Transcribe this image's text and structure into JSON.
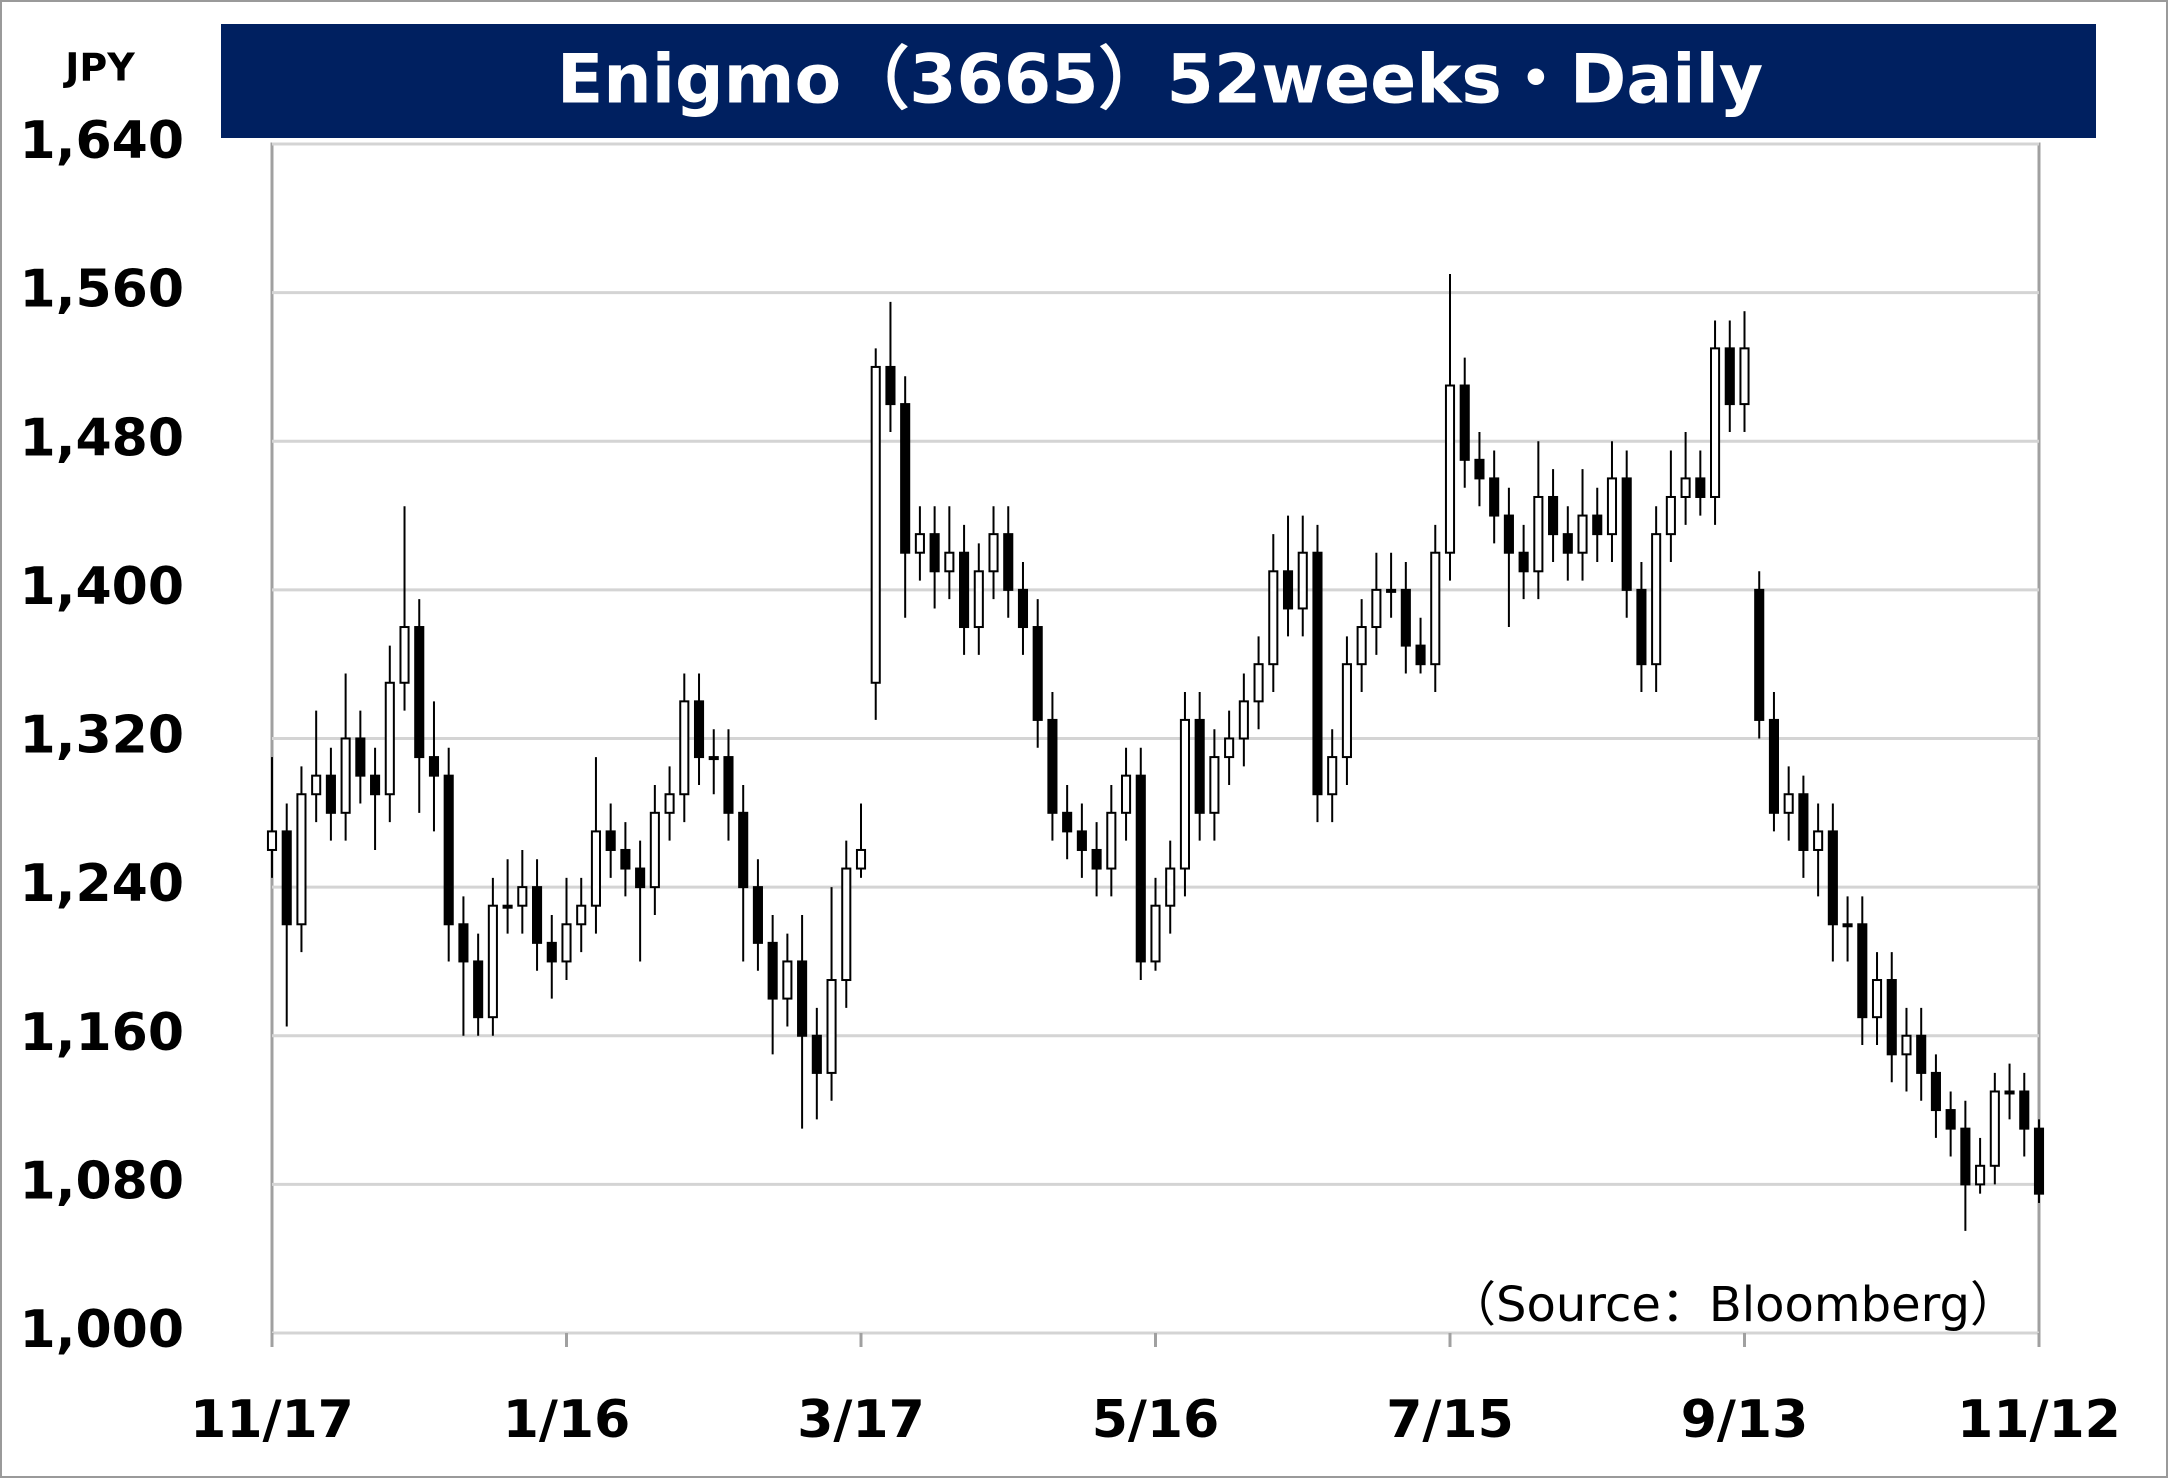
{
  "chart_data": {
    "type": "candlestick",
    "title": "Enigmo（3665）52weeks・Daily",
    "y_label": "JPY",
    "source": "（Source：Bloomberg）",
    "categories": [
      "11/17",
      null,
      null,
      null,
      null,
      null,
      null,
      null,
      null,
      null,
      null,
      null,
      null,
      null,
      null,
      null,
      null,
      null,
      null,
      null,
      "1/16",
      null,
      null,
      null,
      null,
      null,
      null,
      null,
      null,
      null,
      null,
      null,
      null,
      null,
      null,
      null,
      null,
      null,
      null,
      null,
      "3/17",
      null,
      null,
      null,
      null,
      null,
      null,
      null,
      null,
      null,
      null,
      null,
      null,
      null,
      null,
      null,
      null,
      null,
      null,
      null,
      "5/16",
      null,
      null,
      null,
      null,
      null,
      null,
      null,
      null,
      null,
      null,
      null,
      null,
      null,
      null,
      null,
      null,
      null,
      null,
      null,
      "7/15",
      null,
      null,
      null,
      null,
      null,
      null,
      null,
      null,
      null,
      null,
      null,
      null,
      null,
      null,
      null,
      null,
      null,
      null,
      null,
      "9/13",
      null,
      null,
      null,
      null,
      null,
      null,
      null,
      null,
      null,
      null,
      null,
      null,
      null,
      null,
      null,
      null,
      null,
      null,
      null,
      "11/12"
    ],
    "open": [
      1260,
      1270,
      1220,
      1290,
      1300,
      1280,
      1320,
      1300,
      1290,
      1350,
      1380,
      1310,
      1300,
      1220,
      1200,
      1170,
      1230,
      1230,
      1240,
      1210,
      1200,
      1220,
      1230,
      1270,
      1260,
      1250,
      1240,
      1280,
      1290,
      1340,
      1310,
      1310,
      1280,
      1240,
      1210,
      1180,
      1200,
      1160,
      1140,
      1190,
      1250,
      1350,
      1520,
      1500,
      1420,
      1430,
      1410,
      1420,
      1380,
      1410,
      1430,
      1400,
      1380,
      1330,
      1280,
      1270,
      1260,
      1250,
      1280,
      1300,
      1200,
      1230,
      1250,
      1330,
      1280,
      1310,
      1320,
      1340,
      1360,
      1410,
      1390,
      1420,
      1290,
      1310,
      1360,
      1380,
      1400,
      1400,
      1370,
      1360,
      1420,
      1510,
      1470,
      1460,
      1440,
      1420,
      1410,
      1450,
      1430,
      1420,
      1440,
      1430,
      1460,
      1400,
      1360,
      1430,
      1450,
      1460,
      1450,
      1530,
      1500,
      1400,
      1330,
      1280,
      1290,
      1260,
      1270,
      1220,
      1220,
      1170,
      1190,
      1150,
      1160,
      1140,
      1120,
      1110,
      1080,
      1090,
      1130,
      1130,
      1110
    ],
    "high": [
      1310,
      1285,
      1305,
      1335,
      1315,
      1355,
      1335,
      1315,
      1370,
      1445,
      1395,
      1340,
      1315,
      1235,
      1215,
      1245,
      1255,
      1260,
      1255,
      1225,
      1245,
      1245,
      1310,
      1285,
      1275,
      1265,
      1295,
      1305,
      1355,
      1355,
      1325,
      1325,
      1295,
      1255,
      1225,
      1215,
      1225,
      1175,
      1240,
      1265,
      1285,
      1530,
      1555,
      1515,
      1445,
      1445,
      1445,
      1435,
      1425,
      1445,
      1445,
      1415,
      1395,
      1345,
      1295,
      1285,
      1275,
      1295,
      1315,
      1315,
      1245,
      1265,
      1345,
      1345,
      1325,
      1335,
      1355,
      1375,
      1430,
      1440,
      1440,
      1435,
      1325,
      1375,
      1395,
      1420,
      1420,
      1415,
      1385,
      1435,
      1570,
      1525,
      1485,
      1475,
      1455,
      1435,
      1480,
      1465,
      1445,
      1465,
      1455,
      1480,
      1475,
      1415,
      1445,
      1475,
      1485,
      1475,
      1545,
      1545,
      1550,
      1410,
      1345,
      1305,
      1300,
      1285,
      1285,
      1235,
      1235,
      1205,
      1205,
      1175,
      1175,
      1150,
      1130,
      1125,
      1105,
      1140,
      1145,
      1140,
      1115
    ],
    "low": [
      1245,
      1165,
      1205,
      1275,
      1265,
      1265,
      1285,
      1260,
      1275,
      1335,
      1280,
      1270,
      1200,
      1160,
      1160,
      1160,
      1215,
      1215,
      1195,
      1180,
      1190,
      1205,
      1215,
      1245,
      1235,
      1200,
      1225,
      1265,
      1275,
      1295,
      1290,
      1265,
      1200,
      1195,
      1150,
      1165,
      1110,
      1115,
      1125,
      1175,
      1245,
      1330,
      1485,
      1385,
      1405,
      1390,
      1395,
      1365,
      1365,
      1395,
      1385,
      1365,
      1315,
      1265,
      1255,
      1245,
      1235,
      1235,
      1265,
      1190,
      1195,
      1215,
      1235,
      1265,
      1265,
      1295,
      1305,
      1325,
      1345,
      1375,
      1375,
      1275,
      1275,
      1295,
      1345,
      1365,
      1385,
      1355,
      1355,
      1345,
      1405,
      1455,
      1445,
      1425,
      1380,
      1395,
      1395,
      1415,
      1405,
      1405,
      1415,
      1415,
      1385,
      1345,
      1345,
      1415,
      1435,
      1440,
      1435,
      1485,
      1485,
      1320,
      1270,
      1265,
      1245,
      1235,
      1200,
      1200,
      1155,
      1155,
      1135,
      1130,
      1125,
      1105,
      1095,
      1055,
      1075,
      1080,
      1115,
      1095,
      1070
    ],
    "close": [
      1270,
      1220,
      1290,
      1300,
      1280,
      1320,
      1300,
      1290,
      1350,
      1380,
      1310,
      1300,
      1220,
      1200,
      1170,
      1230,
      1230,
      1240,
      1210,
      1200,
      1220,
      1230,
      1270,
      1260,
      1250,
      1240,
      1280,
      1290,
      1340,
      1310,
      1310,
      1280,
      1240,
      1210,
      1180,
      1200,
      1160,
      1140,
      1190,
      1250,
      1260,
      1520,
      1500,
      1420,
      1430,
      1410,
      1420,
      1380,
      1410,
      1430,
      1400,
      1380,
      1330,
      1280,
      1270,
      1260,
      1250,
      1280,
      1300,
      1200,
      1230,
      1250,
      1330,
      1280,
      1310,
      1320,
      1340,
      1360,
      1410,
      1390,
      1420,
      1290,
      1310,
      1360,
      1380,
      1400,
      1400,
      1370,
      1360,
      1420,
      1510,
      1470,
      1460,
      1440,
      1420,
      1410,
      1450,
      1430,
      1420,
      1440,
      1430,
      1460,
      1400,
      1360,
      1430,
      1450,
      1460,
      1450,
      1530,
      1500,
      1530,
      1330,
      1280,
      1290,
      1260,
      1270,
      1220,
      1220,
      1170,
      1190,
      1150,
      1160,
      1140,
      1120,
      1110,
      1080,
      1090,
      1130,
      1130,
      1110,
      1075
    ],
    "up_color": "#ffffff",
    "down_color": "#000000",
    "edge_color": "#000000",
    "title_color": "#002060",
    "ylim": [
      1000,
      1640
    ],
    "yticks": [
      {
        "value": 1000,
        "label": "1,000"
      },
      {
        "value": 1080,
        "label": "1,080"
      },
      {
        "value": 1160,
        "label": "1,160"
      },
      {
        "value": 1240,
        "label": "1,240"
      },
      {
        "value": 1320,
        "label": "1,320"
      },
      {
        "value": 1400,
        "label": "1,400"
      },
      {
        "value": 1480,
        "label": "1,480"
      },
      {
        "value": 1560,
        "label": "1,560"
      },
      {
        "value": 1640,
        "label": "1,640"
      }
    ],
    "grid": true
  }
}
